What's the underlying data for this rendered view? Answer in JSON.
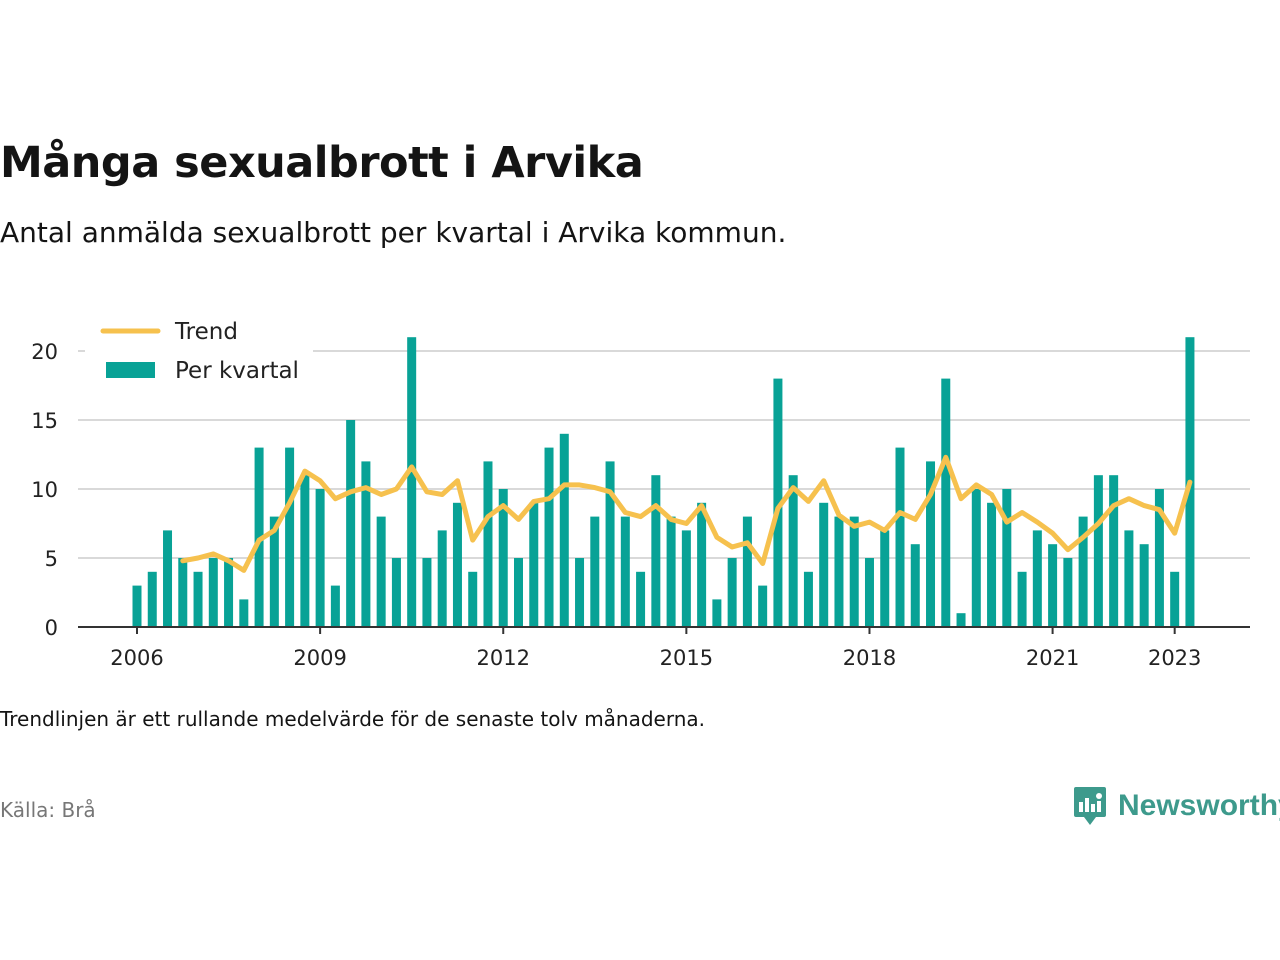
{
  "header": {
    "title": "Många sexualbrott i Arvika",
    "subtitle": "Antal anmälda sexualbrott per kvartal i Arvika kommun."
  },
  "footer": {
    "note": "Trendlinjen är ett rullande medelvärde för de senaste tolv månaderna.",
    "source": "Källa: Brå",
    "brand": "Newsworthy",
    "brand_icon": "newsworthy-logo-icon"
  },
  "colors": {
    "bar": "#08a296",
    "trend": "#f6c14e",
    "grid": "#d9d9d9",
    "axis": "#333333",
    "brand": "#3d9a8c"
  },
  "chart_data": {
    "type": "bar",
    "title": "Många sexualbrott i Arvika",
    "xlabel": "",
    "ylabel": "",
    "ylim": [
      0,
      22
    ],
    "yticks": [
      0,
      5,
      10,
      15,
      20
    ],
    "xticks": [
      {
        "label": "2006",
        "year": 2006
      },
      {
        "label": "2009",
        "year": 2009
      },
      {
        "label": "2012",
        "year": 2012
      },
      {
        "label": "2015",
        "year": 2015
      },
      {
        "label": "2018",
        "year": 2018
      },
      {
        "label": "2021",
        "year": 2021
      },
      {
        "label": "2023",
        "year": 2023
      }
    ],
    "grid": true,
    "legend": {
      "position": "top-left"
    },
    "first_quarter": "2006 Q1",
    "series": [
      {
        "name": "Per kvartal",
        "type": "bar",
        "values": [
          3,
          4,
          7,
          5,
          4,
          5,
          5,
          2,
          13,
          8,
          13,
          11,
          10,
          3,
          15,
          12,
          8,
          5,
          21,
          5,
          7,
          9,
          4,
          12,
          10,
          5,
          9,
          13,
          14,
          5,
          8,
          12,
          8,
          4,
          11,
          8,
          7,
          9,
          2,
          5,
          8,
          3,
          18,
          11,
          4,
          9,
          8,
          8,
          5,
          7,
          13,
          6,
          12,
          18,
          1,
          10,
          9,
          10,
          4,
          7,
          6,
          5,
          8,
          11,
          11,
          7,
          6,
          10,
          4,
          21
        ]
      },
      {
        "name": "Trend",
        "type": "line",
        "values": [
          null,
          null,
          null,
          4.8,
          5.0,
          5.3,
          4.8,
          4.1,
          6.3,
          7.0,
          9.0,
          11.3,
          10.6,
          9.3,
          9.8,
          10.1,
          9.6,
          10.0,
          11.6,
          9.8,
          9.6,
          10.6,
          6.3,
          8.0,
          8.8,
          7.8,
          9.1,
          9.3,
          10.3,
          10.3,
          10.1,
          9.8,
          8.3,
          8.0,
          8.8,
          7.8,
          7.5,
          8.8,
          6.5,
          5.8,
          6.1,
          4.6,
          8.6,
          10.1,
          9.1,
          10.6,
          8.1,
          7.3,
          7.6,
          7.0,
          8.3,
          7.8,
          9.6,
          12.3,
          9.3,
          10.3,
          9.6,
          7.6,
          8.3,
          7.6,
          6.8,
          5.6,
          6.5,
          7.5,
          8.8,
          9.3,
          8.8,
          8.5,
          6.8,
          10.5
        ]
      }
    ]
  }
}
